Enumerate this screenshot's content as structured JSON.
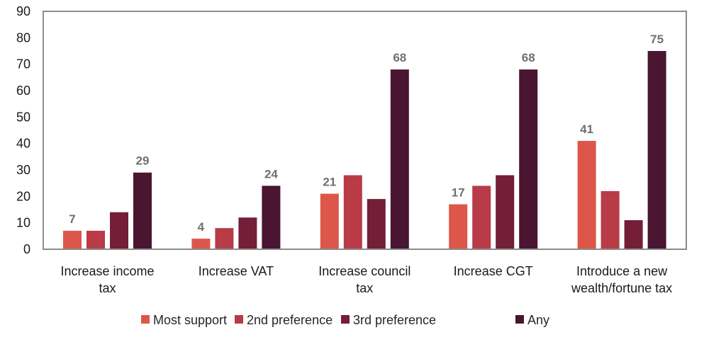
{
  "chart_data": {
    "type": "bar",
    "title": "",
    "xlabel": "",
    "ylabel": "",
    "ylim": [
      0,
      90
    ],
    "yticks": [
      0,
      10,
      20,
      30,
      40,
      50,
      60,
      70,
      80,
      90
    ],
    "grid": false,
    "legend_position": "bottom",
    "categories": [
      [
        "Increase income",
        "tax"
      ],
      [
        "Increase VAT"
      ],
      [
        "Increase council",
        "tax"
      ],
      [
        "Increase CGT"
      ],
      [
        "Introduce a new",
        "wealth/fortune tax"
      ]
    ],
    "series": [
      {
        "name": "Most support",
        "color": "#DC574A",
        "values": [
          7,
          4,
          21,
          17,
          41
        ],
        "show_labels": true
      },
      {
        "name": "2nd preference",
        "color": "#B83B47",
        "values": [
          7,
          8,
          28,
          24,
          22
        ],
        "show_labels": false
      },
      {
        "name": "3rd preference",
        "color": "#741E38",
        "values": [
          14,
          12,
          19,
          28,
          11
        ],
        "show_labels": false
      },
      {
        "name": "Any",
        "color": "#4A1530",
        "values": [
          29,
          24,
          68,
          68,
          75
        ],
        "show_labels": true
      }
    ]
  }
}
